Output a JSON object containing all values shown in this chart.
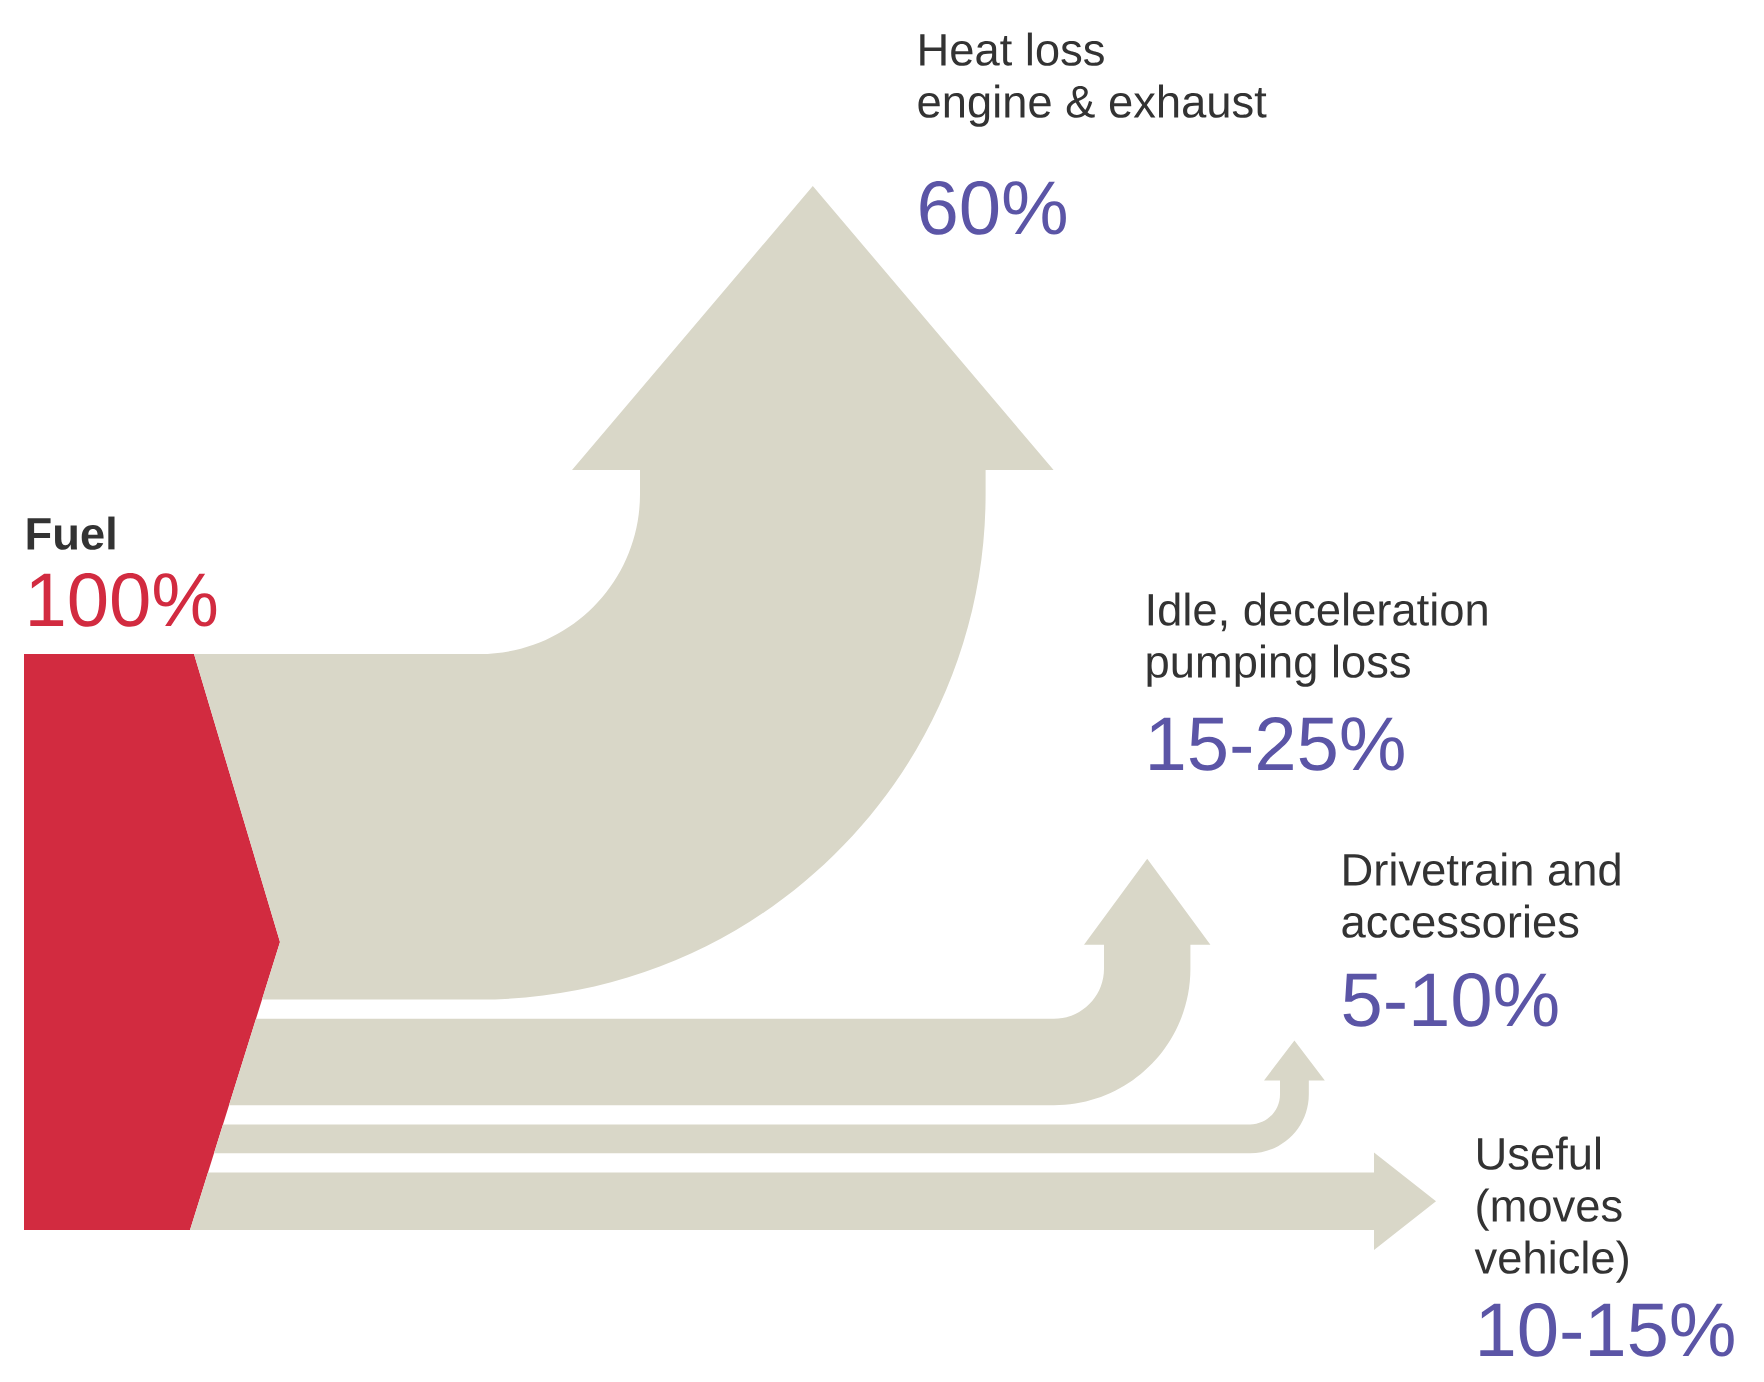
{
  "chart_data": {
    "type": "other",
    "categories": [
      "Fuel",
      "Heat loss engine & exhaust",
      "Idle, deceleration pumping loss",
      "Drivetrain and accessories",
      "Useful (moves vehicle)"
    ],
    "values": [
      100,
      60,
      15,
      5,
      10
    ],
    "value_labels": [
      "100%",
      "60%",
      "15-25%",
      "5-10%",
      "10-15%"
    ],
    "colors": [
      "#d22b40",
      "#d9d7c8",
      "#d9d7c8",
      "#d9d7c8",
      "#d9d7c8"
    ]
  }
}
